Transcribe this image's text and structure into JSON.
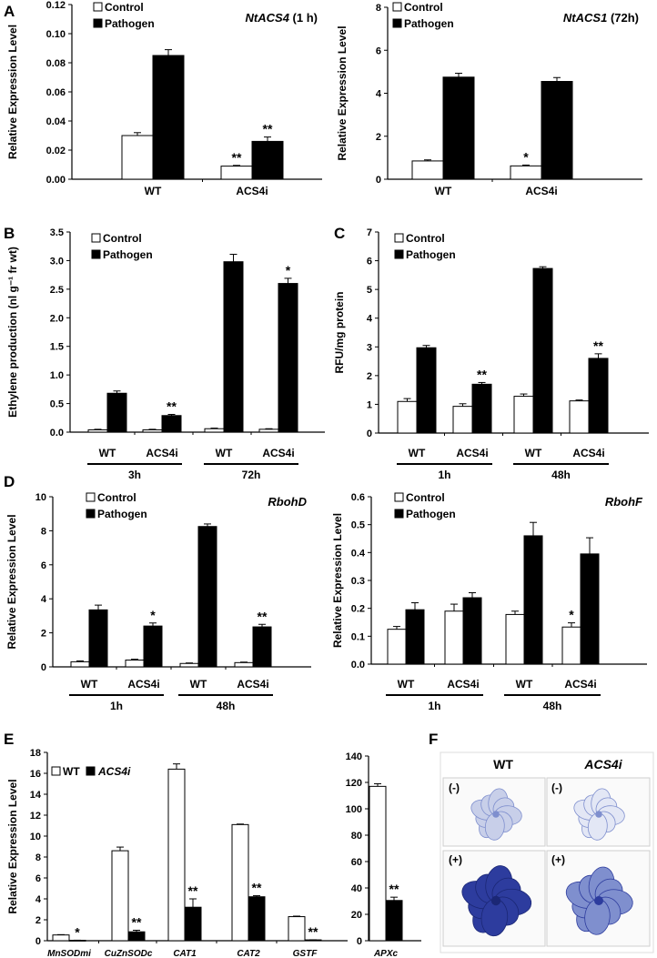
{
  "panel_letters": {
    "A": "A",
    "B": "B",
    "C": "C",
    "D": "D",
    "E": "E",
    "F": "F"
  },
  "legend": {
    "control": "Control",
    "pathogen": "Pathogen"
  },
  "chart_data": [
    {
      "id": "A1",
      "type": "bar",
      "panel": "A",
      "gene_label": "NtACS4",
      "gene_suffix": " (1 h)",
      "ylabel": "Relative Expression Level",
      "xlabel": "",
      "ylim": [
        0,
        0.12
      ],
      "yticks": [
        "0.00",
        "0.02",
        "0.04",
        "0.06",
        "0.08",
        "0.10",
        "0.12"
      ],
      "categories": [
        "WT",
        "ACS4i"
      ],
      "series": [
        {
          "name": "Control",
          "values": [
            0.03,
            0.009
          ],
          "errors": [
            0.002,
            0.0005
          ],
          "sig": [
            "",
            "**"
          ]
        },
        {
          "name": "Pathogen",
          "values": [
            0.085,
            0.026
          ],
          "errors": [
            0.004,
            0.003
          ],
          "sig": [
            "",
            "**"
          ]
        }
      ]
    },
    {
      "id": "A2",
      "type": "bar",
      "panel": "A",
      "gene_label": "NtACS1",
      "gene_suffix": " (72h)",
      "ylabel": "Relative Expression Level",
      "xlabel": "",
      "ylim": [
        0,
        8
      ],
      "yticks": [
        "0",
        "2",
        "4",
        "6",
        "8"
      ],
      "categories": [
        "WT",
        "ACS4i"
      ],
      "series": [
        {
          "name": "Control",
          "values": [
            0.85,
            0.62
          ],
          "errors": [
            0.05,
            0.04
          ],
          "sig": [
            "",
            "*"
          ]
        },
        {
          "name": "Pathogen",
          "values": [
            4.75,
            4.55
          ],
          "errors": [
            0.18,
            0.18
          ],
          "sig": [
            "",
            ""
          ]
        }
      ]
    },
    {
      "id": "B",
      "type": "bar",
      "panel": "B",
      "gene_label": "",
      "ylabel": "Ethylene production (nl g⁻¹ fr wt)",
      "xlabel": "",
      "ylim": [
        0,
        3.5
      ],
      "yticks": [
        "0.0",
        "0.5",
        "1.0",
        "1.5",
        "2.0",
        "2.5",
        "3.0",
        "3.5"
      ],
      "categories": [
        "WT",
        "ACS4i",
        "WT",
        "ACS4i"
      ],
      "groups": [
        {
          "label": "3h",
          "span": [
            0,
            1
          ]
        },
        {
          "label": "72h",
          "span": [
            2,
            3
          ]
        }
      ],
      "series": [
        {
          "name": "Control",
          "values": [
            0.04,
            0.04,
            0.06,
            0.05
          ],
          "errors": [
            0.01,
            0.01,
            0.01,
            0.01
          ],
          "sig": [
            "",
            "",
            "",
            ""
          ]
        },
        {
          "name": "Pathogen",
          "values": [
            0.68,
            0.29,
            2.98,
            2.6
          ],
          "errors": [
            0.04,
            0.02,
            0.13,
            0.09
          ],
          "sig": [
            "",
            "**",
            "",
            "*"
          ]
        }
      ]
    },
    {
      "id": "C",
      "type": "bar",
      "panel": "C",
      "gene_label": "",
      "ylabel": "RFU/mg protein",
      "xlabel": "",
      "ylim": [
        0,
        7
      ],
      "yticks": [
        "0",
        "1",
        "2",
        "3",
        "4",
        "5",
        "6",
        "7"
      ],
      "categories": [
        "WT",
        "ACS4i",
        "WT",
        "ACS4i"
      ],
      "groups": [
        {
          "label": "1h",
          "span": [
            0,
            1
          ]
        },
        {
          "label": "48h",
          "span": [
            2,
            3
          ]
        }
      ],
      "series": [
        {
          "name": "Control",
          "values": [
            1.1,
            0.93,
            1.28,
            1.12
          ],
          "errors": [
            0.1,
            0.09,
            0.08,
            0.03
          ],
          "sig": [
            "",
            "",
            "",
            ""
          ]
        },
        {
          "name": "Pathogen",
          "values": [
            2.97,
            1.7,
            5.73,
            2.6
          ],
          "errors": [
            0.08,
            0.06,
            0.06,
            0.16
          ],
          "sig": [
            "",
            "**",
            "",
            "**"
          ]
        }
      ]
    },
    {
      "id": "D1",
      "type": "bar",
      "panel": "D",
      "gene_label": "RbohD",
      "gene_suffix": "",
      "ylabel": "Relative Expression Level",
      "xlabel": "",
      "ylim": [
        0,
        10
      ],
      "yticks": [
        "0",
        "2",
        "4",
        "6",
        "8",
        "10"
      ],
      "categories": [
        "WT",
        "ACS4i",
        "WT",
        "ACS4i"
      ],
      "groups": [
        {
          "label": "1h",
          "span": [
            0,
            1
          ]
        },
        {
          "label": "48h",
          "span": [
            2,
            3
          ]
        }
      ],
      "series": [
        {
          "name": "Control",
          "values": [
            0.3,
            0.4,
            0.2,
            0.25
          ],
          "errors": [
            0.05,
            0.05,
            0.03,
            0.03
          ],
          "sig": [
            "",
            "",
            "",
            ""
          ]
        },
        {
          "name": "Pathogen",
          "values": [
            3.35,
            2.4,
            8.25,
            2.35
          ],
          "errors": [
            0.28,
            0.18,
            0.15,
            0.15
          ],
          "sig": [
            "",
            "*",
            "",
            "**"
          ]
        }
      ]
    },
    {
      "id": "D2",
      "type": "bar",
      "panel": "D",
      "gene_label": "RbohF",
      "gene_suffix": "",
      "ylabel": "Relative Expression Level",
      "xlabel": "",
      "ylim": [
        0,
        0.6
      ],
      "yticks": [
        "0.0",
        "0.1",
        "0.2",
        "0.3",
        "0.4",
        "0.5",
        "0.6"
      ],
      "categories": [
        "WT",
        "ACS4i",
        "WT",
        "ACS4i"
      ],
      "groups": [
        {
          "label": "1h",
          "span": [
            0,
            1
          ]
        },
        {
          "label": "48h",
          "span": [
            2,
            3
          ]
        }
      ],
      "series": [
        {
          "name": "Control",
          "values": [
            0.125,
            0.19,
            0.178,
            0.133
          ],
          "errors": [
            0.01,
            0.025,
            0.012,
            0.015
          ],
          "sig": [
            "",
            "",
            "",
            "*"
          ]
        },
        {
          "name": "Pathogen",
          "values": [
            0.195,
            0.238,
            0.46,
            0.395
          ],
          "errors": [
            0.025,
            0.018,
            0.048,
            0.058
          ],
          "sig": [
            "",
            "",
            "",
            ""
          ]
        }
      ]
    },
    {
      "id": "E1",
      "type": "bar",
      "panel": "E",
      "gene_label": "",
      "ylabel": "Relative Expression Level",
      "xlabel": "",
      "ylim": [
        0,
        18
      ],
      "yticks": [
        "0",
        "2",
        "4",
        "6",
        "8",
        "10",
        "12",
        "14",
        "16",
        "18"
      ],
      "categories": [
        "MnSODmi",
        "CuZnSODc",
        "CAT1",
        "CAT2",
        "GSTF"
      ],
      "legend_labels": [
        "WT",
        "ACS4i"
      ],
      "series": [
        {
          "name": "WT",
          "values": [
            0.55,
            8.6,
            16.4,
            11.1,
            2.3
          ],
          "errors": [
            0.03,
            0.35,
            0.5,
            0.05,
            0.05
          ],
          "sig": [
            "",
            "",
            "",
            "",
            ""
          ]
        },
        {
          "name": "ACS4i",
          "values": [
            0.04,
            0.85,
            3.2,
            4.2,
            0.08
          ],
          "errors": [
            0.01,
            0.15,
            0.8,
            0.1,
            0.01
          ],
          "sig": [
            "*",
            "**",
            "**",
            "**",
            "**"
          ]
        }
      ]
    },
    {
      "id": "E2",
      "type": "bar",
      "panel": "E",
      "gene_label": "",
      "ylabel": "",
      "xlabel": "",
      "ylim": [
        0,
        140
      ],
      "yticks": [
        "0",
        "20",
        "40",
        "60",
        "80",
        "100",
        "120",
        "140"
      ],
      "categories": [
        "APXc"
      ],
      "series": [
        {
          "name": "WT",
          "values": [
            117
          ],
          "errors": [
            2
          ],
          "sig": [
            ""
          ]
        },
        {
          "name": "ACS4i",
          "values": [
            30.5
          ],
          "errors": [
            2.5
          ],
          "sig": [
            "**"
          ]
        }
      ]
    }
  ],
  "panelF": {
    "col_wt": "WT",
    "col_acs4i": "ACS4i",
    "row_minus": "(-)",
    "row_plus": "(+)",
    "leaf_colors": {
      "light": "#c8cfe9",
      "mid": "#7f8fce",
      "dark": "#2d3c9e"
    }
  }
}
